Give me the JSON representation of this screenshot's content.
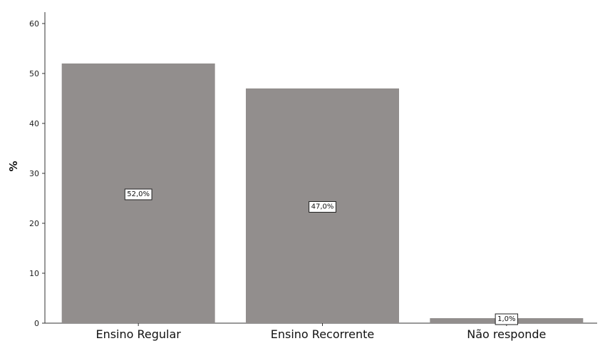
{
  "chart_data": {
    "type": "bar",
    "categories": [
      "Ensino Regular",
      "Ensino Recorrente",
      "Não responde"
    ],
    "values": [
      52.0,
      47.0,
      1.0
    ],
    "data_labels": [
      "52,0%",
      "47,0%",
      "1,0%"
    ],
    "title": "",
    "xlabel": "",
    "ylabel": "%",
    "ylim": [
      0,
      62
    ],
    "yticks": [
      "0",
      "10",
      "20",
      "30",
      "40",
      "50",
      "60"
    ],
    "grid": false,
    "legend": "none",
    "bar_color": "#928e8d"
  }
}
